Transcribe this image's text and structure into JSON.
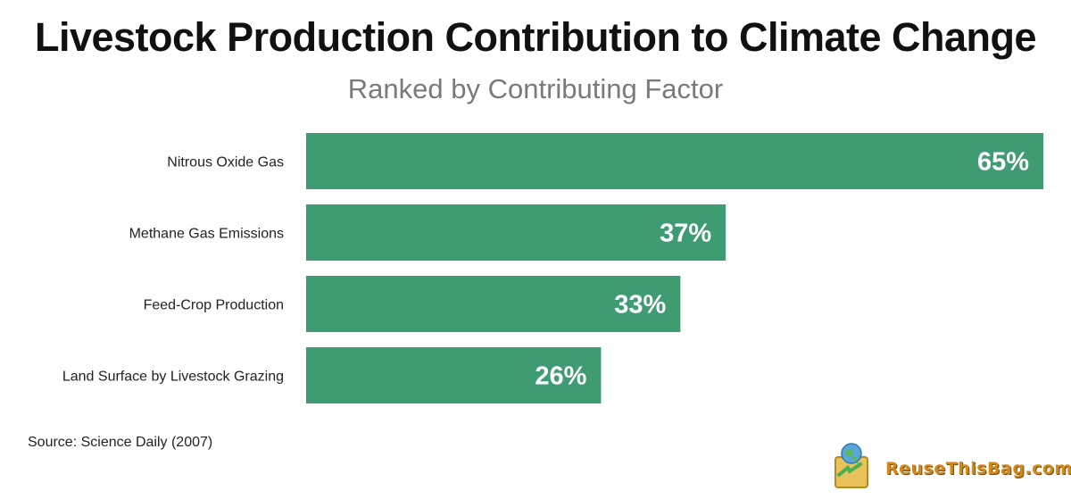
{
  "title": "Livestock Production Contribution to Climate Change",
  "subtitle": "Ranked by Contributing Factor",
  "source": "Source: Science Daily (2007)",
  "logo": {
    "text": "ReuseThisBag.com",
    "icon": "reusable-bag-globe-icon"
  },
  "colors": {
    "bar": "#3f9b72",
    "label_inside": "#ffffff",
    "label_outside": "#111111"
  },
  "chart_data": {
    "type": "bar",
    "orientation": "horizontal",
    "title": "Livestock Production Contribution to Climate Change",
    "subtitle": "Ranked by Contributing Factor",
    "categories": [
      "Nitrous Oxide Gas",
      "Methane Gas Emissions",
      "Feed-Crop Production",
      "Land Surface by Livestock Grazing"
    ],
    "values": [
      65,
      37,
      33,
      26
    ],
    "value_labels": [
      "65%",
      "37%",
      "33%",
      "26%"
    ],
    "units": "%",
    "xlim": [
      0,
      65
    ],
    "grid": false,
    "legend": "none"
  }
}
